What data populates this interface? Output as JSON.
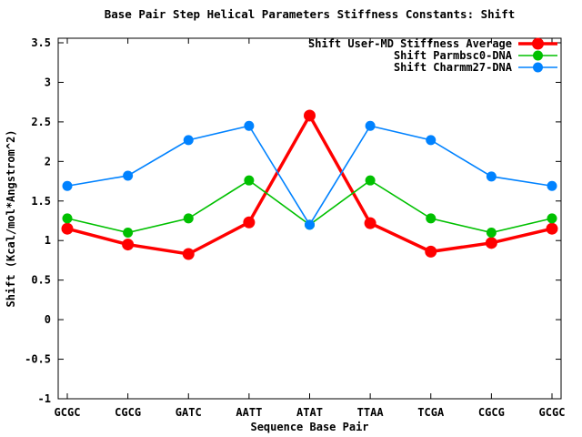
{
  "title": "Base Pair Step Helical Parameters Stiffness Constants: Shift",
  "chart_data": {
    "type": "line",
    "title": "Base Pair Step Helical Parameters Stiffness Constants: Shift",
    "xlabel": "Sequence Base Pair",
    "ylabel": "Shift (Kcal/mol*Angstrom^2)",
    "categories": [
      "GCGC",
      "CGCG",
      "GATC",
      "AATT",
      "ATAT",
      "TTAA",
      "TCGA",
      "CGCG",
      "GCGC"
    ],
    "series": [
      {
        "name": "Shift User-MD Stiffness Average",
        "color": "#ff0000",
        "line_width": 3.5,
        "marker_radius": 6.5,
        "values": [
          1.15,
          0.95,
          0.83,
          1.23,
          2.58,
          1.22,
          0.86,
          0.97,
          1.15
        ]
      },
      {
        "name": "Shift Parmbsc0-DNA",
        "color": "#00c000",
        "line_width": 1.6,
        "marker_radius": 5.5,
        "values": [
          1.28,
          1.1,
          1.28,
          1.76,
          1.2,
          1.76,
          1.28,
          1.1,
          1.28
        ]
      },
      {
        "name": "Shift Charmm27-DNA",
        "color": "#0082ff",
        "line_width": 1.6,
        "marker_radius": 5.5,
        "values": [
          1.69,
          1.82,
          2.27,
          2.45,
          1.2,
          2.45,
          2.27,
          1.81,
          1.69
        ]
      }
    ],
    "ylim": [
      -1,
      3.5
    ],
    "ytick_labels": [
      "3.5",
      "3",
      "2.5",
      "2",
      "1.5",
      "1",
      "0.5",
      "0",
      "-0.5",
      "-1"
    ],
    "grid": false,
    "legend_position": "top-right",
    "background_color": "#ffffff",
    "axis_color": "#000000",
    "text_color": "#000000"
  }
}
